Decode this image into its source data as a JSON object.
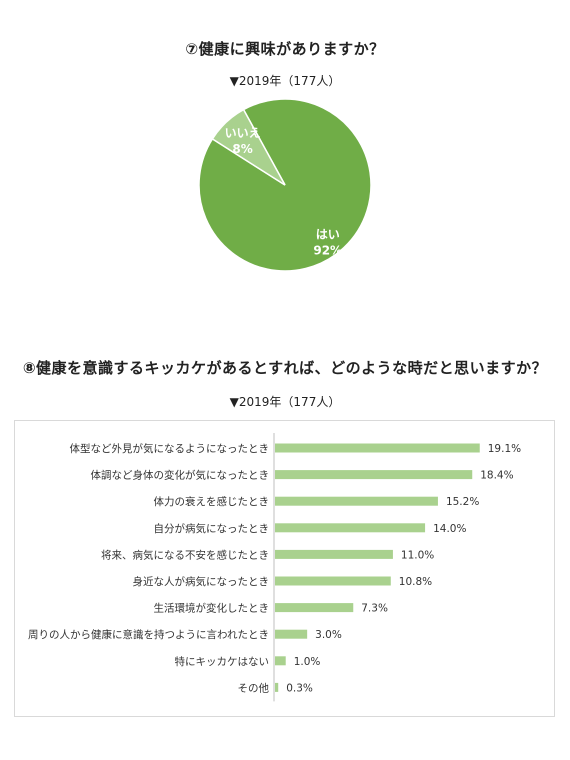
{
  "q1": {
    "title": "⑦健康に興味がありますか？",
    "subtitle": "▼2019年（177人）"
  },
  "q2": {
    "title": "⑧健康を意識するキッカケがあるとすれば、どのような時だと思いますか？",
    "subtitle": "▼2019年（177人）"
  },
  "chart_data": [
    {
      "type": "pie",
      "title": "⑦健康に興味がありますか？",
      "slices": [
        {
          "label": "はい",
          "value": 92,
          "value_label": "92%",
          "color": "#70ad47"
        },
        {
          "label": "いいえ",
          "value": 8,
          "value_label": "8%",
          "color": "#a9d18e"
        }
      ]
    },
    {
      "type": "bar",
      "orientation": "horizontal",
      "title": "⑧健康を意識するキッカケがあるとすれば、どのような時だと思いますか？",
      "categories": [
        "体型など外見が気になるようになったとき",
        "体調など身体の変化が気になったとき",
        "体力の衰えを感じたとき",
        "自分が病気になったとき",
        "将来、病気になる不安を感じたとき",
        "身近な人が病気になったとき",
        "生活環境が変化したとき",
        "周りの人から健康に意識を持つように言われたとき",
        "特にキッカケはない",
        "その他"
      ],
      "values": [
        19.1,
        18.4,
        15.2,
        14.0,
        11.0,
        10.8,
        7.3,
        3.0,
        1.0,
        0.3
      ],
      "value_labels": [
        "19.1%",
        "18.4%",
        "15.2%",
        "14.0%",
        "11.0%",
        "10.8%",
        "7.3%",
        "3.0%",
        "1.0%",
        "0.3%"
      ],
      "color": "#a9d18e",
      "xlim": [
        0,
        25
      ],
      "grid": false
    }
  ]
}
